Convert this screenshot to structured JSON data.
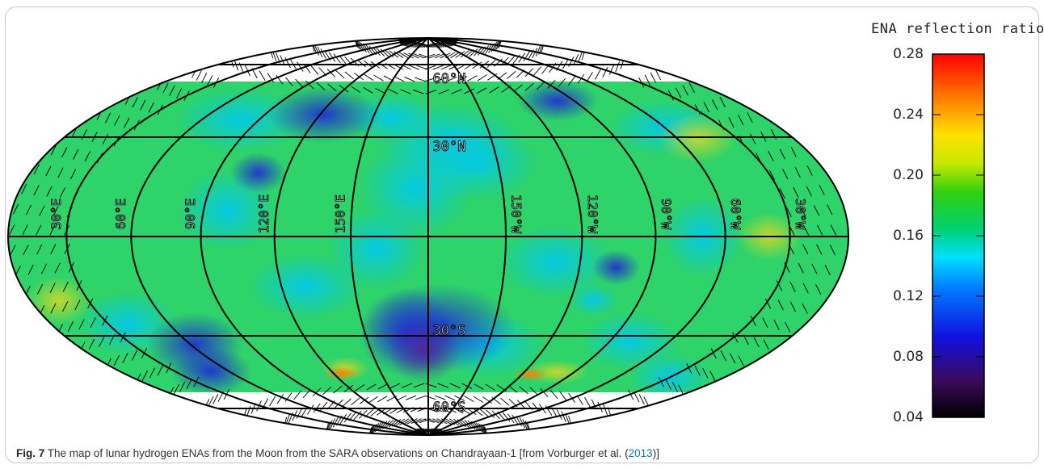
{
  "colorbar": {
    "title": "ENA reflection ratio",
    "ticks": [
      "0.28",
      "0.24",
      "0.20",
      "0.16",
      "0.12",
      "0.08",
      "0.04"
    ],
    "min": 0.04,
    "max": 0.28
  },
  "map": {
    "projection": "Hammer-Aitoff",
    "latitude_labels": [
      "60°N",
      "30°N",
      "30°S",
      "60°S"
    ],
    "longitude_labels": [
      "30°E",
      "60°E",
      "90°E",
      "120°E",
      "150°E",
      "150°W",
      "120°W",
      "90°W",
      "60°W",
      "30°W"
    ]
  },
  "chart_data": {
    "type": "heatmap",
    "title": "",
    "colorbar_label": "ENA reflection ratio",
    "colorbar_range": [
      0.04,
      0.28
    ],
    "colorbar_ticks": [
      0.04,
      0.08,
      0.12,
      0.16,
      0.2,
      0.24,
      0.28
    ],
    "latitude_coverage": [
      -60,
      60
    ],
    "dominant_value": 0.16,
    "low_regions_lat_lon": [
      {
        "lat": -40,
        "lon": 180,
        "value": 0.09
      },
      {
        "lat": 45,
        "lon": 120,
        "value": 0.11
      },
      {
        "lat": 25,
        "lon": 105,
        "value": 0.12
      },
      {
        "lat": -40,
        "lon": 60,
        "value": 0.11
      },
      {
        "lat": 50,
        "lon": -100,
        "value": 0.11
      },
      {
        "lat": -15,
        "lon": -105,
        "value": 0.11
      }
    ],
    "high_regions_lat_lon": [
      {
        "lat": -57,
        "lon": 125,
        "value": 0.24
      },
      {
        "lat": -57,
        "lon": -115,
        "value": 0.24
      }
    ]
  },
  "caption": {
    "label": "Fig. 7",
    "text": "The map of lunar hydrogen ENAs from the Moon from the SARA observations on Chandrayaan-1 [from Vorburger et al. (",
    "year": "2013",
    "end": ")]"
  }
}
